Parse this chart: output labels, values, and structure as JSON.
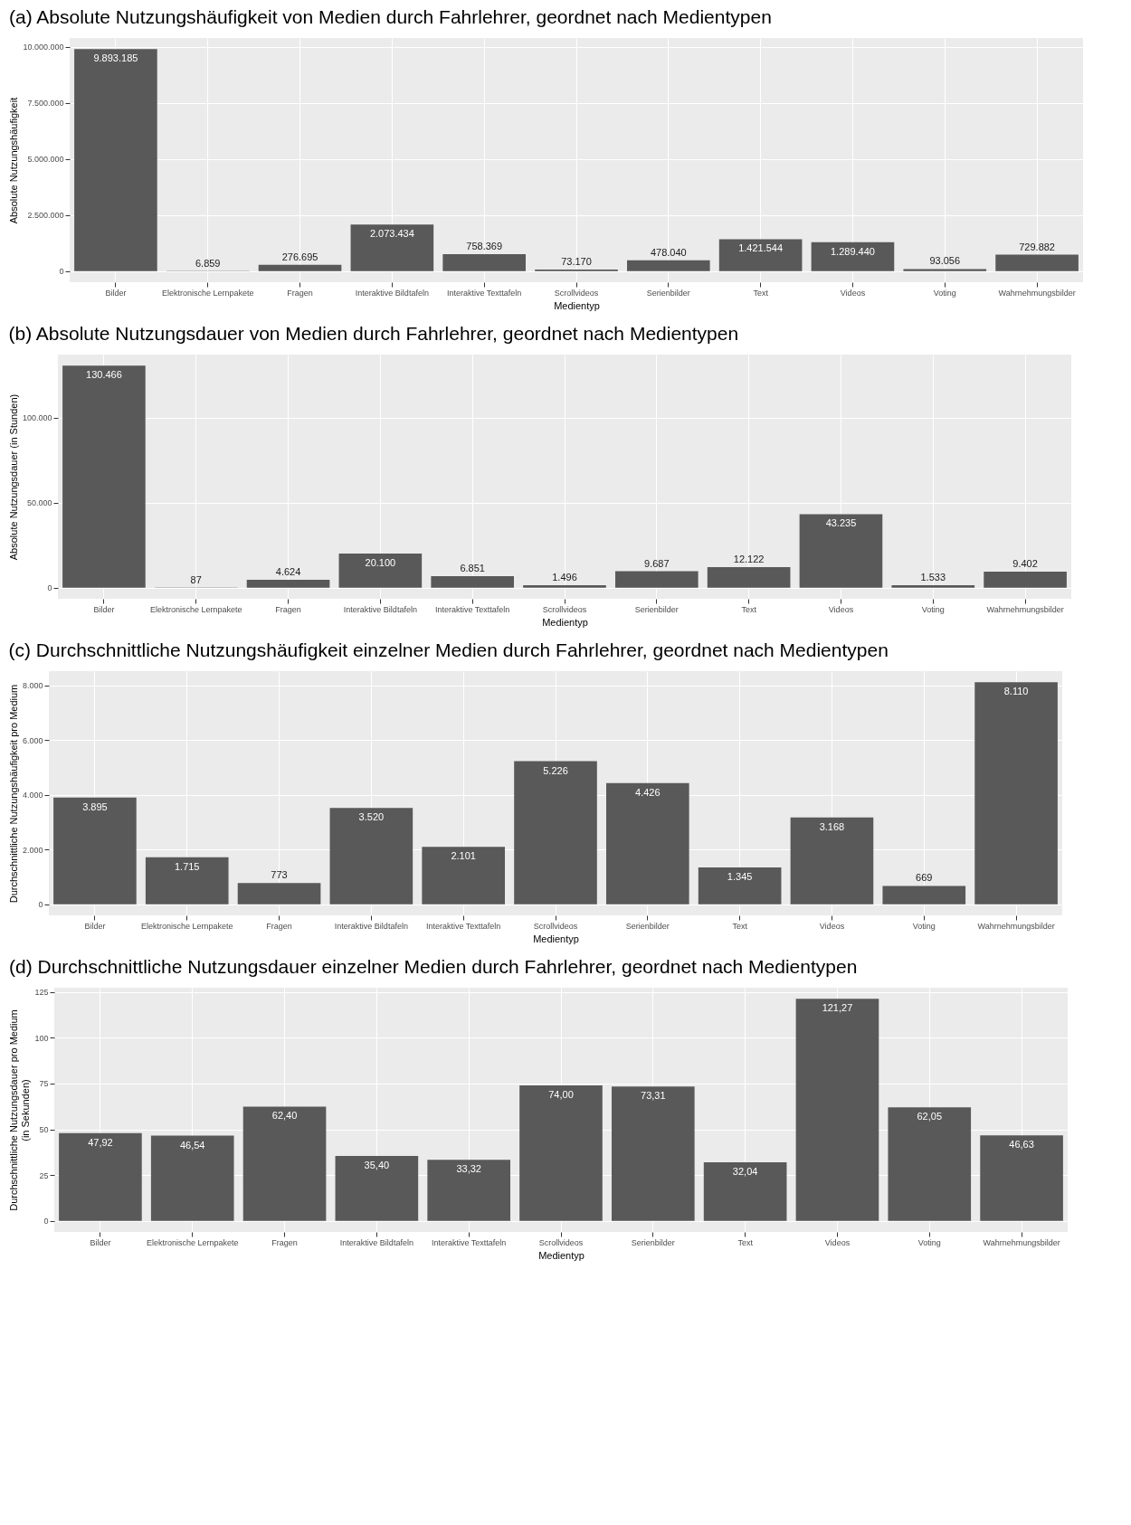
{
  "chart_data": [
    {
      "type": "bar",
      "title": "(a) Absolute Nutzungshäufigkeit von Medien durch Fahrlehrer, geordnet nach Medientypen",
      "xlabel": "Medientyp",
      "ylabel": "Absolute Nutzungshäufigkeit",
      "categories": [
        "Bilder",
        "Elektronische Lernpakete",
        "Fragen",
        "Interaktive Bildtafeln",
        "Interaktive Texttafeln",
        "Scrollvideos",
        "Serienbilder",
        "Text",
        "Videos",
        "Voting",
        "Wahrnehmungsbilder"
      ],
      "values": [
        9893185,
        6859,
        276695,
        2073434,
        758369,
        73170,
        478040,
        1421544,
        1289440,
        93056,
        729882
      ],
      "value_labels": [
        "9.893.185",
        "6.859",
        "276.695",
        "2.073.434",
        "758.369",
        "73.170",
        "478.040",
        "1.421.544",
        "1.289.440",
        "93.056",
        "729.882"
      ],
      "color": "#595959",
      "ylim": [
        -495000,
        10390000
      ],
      "yticks": [
        {
          "value": 0,
          "label": "0"
        },
        {
          "value": 2500000,
          "label": "2.500.000"
        },
        {
          "value": 5000000,
          "label": "5.000.000"
        },
        {
          "value": 7500000,
          "label": "7.500.000"
        },
        {
          "value": 10000000,
          "label": "10.000.000"
        }
      ],
      "grid": true
    },
    {
      "type": "bar",
      "title": "(b) Absolute Nutzungsdauer von Medien durch Fahrlehrer, geordnet nach Medientypen",
      "xlabel": "Medientyp",
      "ylabel": "Absolute Nutzungsdauer (in Stunden)",
      "categories": [
        "Bilder",
        "Elektronische Lernpakete",
        "Fragen",
        "Interaktive Bildtafeln",
        "Interaktive Texttafeln",
        "Scrollvideos",
        "Serienbilder",
        "Text",
        "Videos",
        "Voting",
        "Wahrnehmungsbilder"
      ],
      "values": [
        130466,
        87,
        4624,
        20100,
        6851,
        1496,
        9687,
        12122,
        43235,
        1533,
        9402
      ],
      "value_labels": [
        "130.466",
        "87",
        "4.624",
        "20.100",
        "6.851",
        "1.496",
        "9.687",
        "12.122",
        "43.235",
        "1.533",
        "9.402"
      ],
      "color": "#595959",
      "ylim": [
        -6500,
        137000
      ],
      "yticks": [
        {
          "value": 0,
          "label": "0"
        },
        {
          "value": 50000,
          "label": "50.000"
        },
        {
          "value": 100000,
          "label": "100.000"
        }
      ],
      "grid": true
    },
    {
      "type": "bar",
      "title": "(c) Durchschnittliche Nutzungshäufigkeit einzelner Medien durch Fahrlehrer, geordnet nach Medientypen",
      "xlabel": "Medientyp",
      "ylabel": "Durchschnittliche Nutzungshäufigkeit pro Medium",
      "categories": [
        "Bilder",
        "Elektronische Lernpakete",
        "Fragen",
        "Interaktive Bildtafeln",
        "Interaktive Texttafeln",
        "Scrollvideos",
        "Serienbilder",
        "Text",
        "Videos",
        "Voting",
        "Wahrnehmungsbilder"
      ],
      "values": [
        3895,
        1715,
        773,
        3520,
        2101,
        5226,
        4426,
        1345,
        3168,
        669,
        8110
      ],
      "value_labels": [
        "3.895",
        "1.715",
        "773",
        "3.520",
        "2.101",
        "5.226",
        "4.426",
        "1.345",
        "3.168",
        "669",
        "8.110"
      ],
      "color": "#595959",
      "ylim": [
        -405,
        8515
      ],
      "yticks": [
        {
          "value": 0,
          "label": "0"
        },
        {
          "value": 2000,
          "label": "2.000"
        },
        {
          "value": 4000,
          "label": "4.000"
        },
        {
          "value": 6000,
          "label": "6.000"
        },
        {
          "value": 8000,
          "label": "8.000"
        }
      ],
      "grid": true
    },
    {
      "type": "bar",
      "title": "(d) Durchschnittliche Nutzungsdauer einzelner Medien durch Fahrlehrer, geordnet nach Medientypen",
      "xlabel": "Medientyp",
      "ylabel": "Durchschnittliche Nutzungsdauer pro Medium\n(in Sekunden)",
      "categories": [
        "Bilder",
        "Elektronische Lernpakete",
        "Fragen",
        "Interaktive Bildtafeln",
        "Interaktive Texttafeln",
        "Scrollvideos",
        "Serienbilder",
        "Text",
        "Videos",
        "Voting",
        "Wahrnehmungsbilder"
      ],
      "values": [
        47.92,
        46.54,
        62.4,
        35.4,
        33.32,
        74.0,
        73.31,
        32.04,
        121.27,
        62.05,
        46.63
      ],
      "value_labels": [
        "47,92",
        "46,54",
        "62,40",
        "35,40",
        "33,32",
        "74,00",
        "73,31",
        "32,04",
        "121,27",
        "62,05",
        "46,63"
      ],
      "color": "#595959",
      "ylim": [
        -6.06,
        127.33
      ],
      "yticks": [
        0,
        25,
        50,
        75,
        100,
        125
      ],
      "grid": true
    }
  ]
}
